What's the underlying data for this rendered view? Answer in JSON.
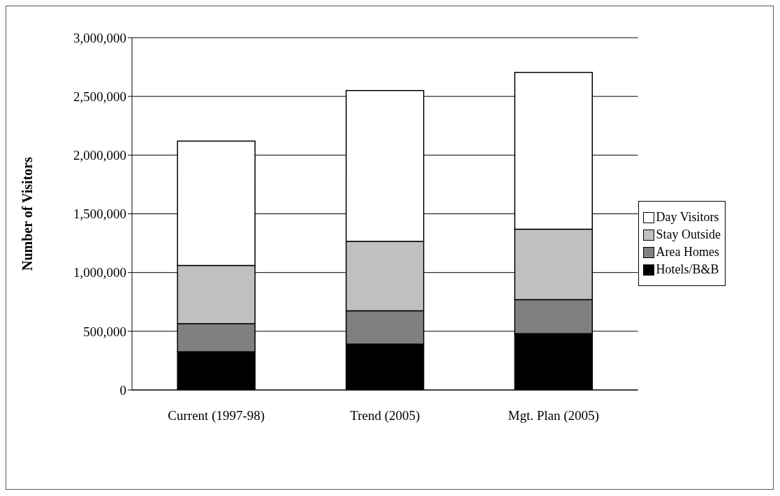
{
  "chart_data": {
    "type": "bar",
    "stacked": true,
    "ylabel": "Number of Visitors",
    "categories": [
      "Current (1997-98)",
      "Trend (2005)",
      "Mgt. Plan (2005)"
    ],
    "series": [
      {
        "name": "Hotels/B&B",
        "color": "#000000",
        "values": [
          325000,
          390000,
          480000
        ]
      },
      {
        "name": "Area Homes",
        "color": "#808080",
        "values": [
          240000,
          285000,
          290000
        ]
      },
      {
        "name": "Stay Outside",
        "color": "#c0c0c0",
        "values": [
          495000,
          590000,
          600000
        ]
      },
      {
        "name": "Day Visitors",
        "color": "#ffffff",
        "values": [
          1060000,
          1285000,
          1335000
        ]
      }
    ],
    "ylim": [
      0,
      3000000
    ],
    "yticks": [
      {
        "value": 0,
        "label": "0"
      },
      {
        "value": 500000,
        "label": "500,000"
      },
      {
        "value": 1000000,
        "label": "1,000,000"
      },
      {
        "value": 1500000,
        "label": "1,500,000"
      },
      {
        "value": 2000000,
        "label": "2,000,000"
      },
      {
        "value": 2500000,
        "label": "2,500,000"
      },
      {
        "value": 3000000,
        "label": "3,000,000"
      }
    ],
    "grid": "y",
    "legend": "right"
  }
}
